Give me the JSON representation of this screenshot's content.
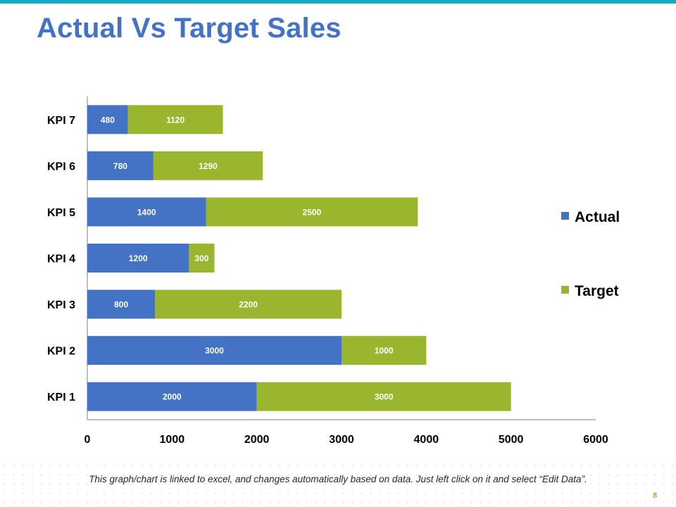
{
  "slide": {
    "title": "Actual Vs Target Sales",
    "footnote": "This graph/chart is linked to excel, and changes automatically based on data. Just left click on it and select “Edit Data”.",
    "page_number": "8",
    "colors": {
      "title": "#4472c4",
      "top_bar": "#13a8c7",
      "actual": "#4472c4",
      "target": "#9ab52e",
      "page_number": "#9ab52e"
    }
  },
  "chart_data": {
    "type": "bar",
    "orientation": "horizontal",
    "stacked": true,
    "categories": [
      "KPI 7",
      "KPI 6",
      "KPI 5",
      "KPI 4",
      "KPI 3",
      "KPI 2",
      "KPI 1"
    ],
    "series": [
      {
        "name": "Actual",
        "color": "#4472c4",
        "values": [
          480,
          780,
          1400,
          1200,
          800,
          3000,
          2000
        ]
      },
      {
        "name": "Target",
        "color": "#9ab52e",
        "values": [
          1120,
          1290,
          2500,
          300,
          2200,
          1000,
          3000
        ]
      }
    ],
    "xlim": [
      0,
      6000
    ],
    "xticks": [
      "0",
      "1000",
      "2000",
      "3000",
      "4000",
      "5000",
      "6000"
    ],
    "grid": false,
    "legend": "right"
  }
}
